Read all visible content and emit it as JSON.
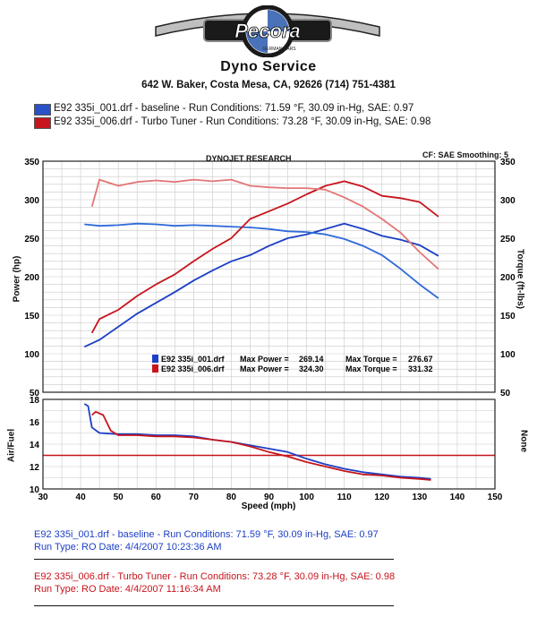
{
  "header": {
    "logo_text": "Pecora",
    "logo_subtext": "GERMAN CARS",
    "title": "Dyno Service",
    "address": "642 W. Baker, Costa Mesa, CA, 92626  (714) 751-4381"
  },
  "runs_top": [
    {
      "text": "E92 335i_001.drf - baseline  -  Run Conditions: 71.59 °F, 30.09 in-Hg, SAE: 0.97",
      "color": "#1c3fc4"
    },
    {
      "text": "E92 335i_006.drf - Turbo Tuner  -  Run Conditions: 73.28 °F, 30.09 in-Hg, SAE: 0.98",
      "color": "#c8141c"
    }
  ],
  "chart_header": {
    "center": "DYNOJET RESEARCH",
    "right": "CF: SAE  Smoothing: 5"
  },
  "chart_data": [
    {
      "type": "line",
      "xlim": [
        30,
        150
      ],
      "ylim_left": [
        50,
        350
      ],
      "ylim_right": [
        50,
        350
      ],
      "ylabel": "Power (hp)",
      "ylabel_right": "Torque (ft-lbs)",
      "yticks": [
        "50",
        "100",
        "150",
        "200",
        "250",
        "300",
        "350"
      ],
      "grid": true,
      "series": [
        {
          "name": "E92 335i_001.drf",
          "measure": "Power",
          "color": "#1c3fc4",
          "x": [
            41,
            45,
            50,
            55,
            60,
            65,
            70,
            75,
            80,
            85,
            90,
            95,
            100,
            105,
            110,
            115,
            120,
            125,
            130,
            135
          ],
          "y": [
            109,
            118,
            135,
            152,
            166,
            180,
            195,
            208,
            220,
            228,
            240,
            250,
            255,
            262,
            269,
            262,
            253,
            248,
            241,
            227
          ]
        },
        {
          "name": "E92 335i_001.drf",
          "measure": "Torque",
          "color": "#2f6ad8",
          "x": [
            41,
            45,
            50,
            55,
            60,
            65,
            70,
            75,
            80,
            85,
            90,
            95,
            100,
            105,
            110,
            115,
            120,
            125,
            130,
            135
          ],
          "y": [
            268,
            266,
            267,
            269,
            268,
            266,
            267,
            266,
            265,
            264,
            262,
            259,
            258,
            255,
            249,
            240,
            228,
            210,
            190,
            172
          ]
        },
        {
          "name": "E92 335i_006.drf",
          "measure": "Power",
          "color": "#c8141c",
          "x": [
            43,
            45,
            50,
            55,
            60,
            65,
            70,
            75,
            80,
            85,
            90,
            95,
            100,
            105,
            110,
            115,
            120,
            125,
            130,
            135
          ],
          "y": [
            127,
            145,
            157,
            175,
            190,
            203,
            220,
            236,
            250,
            275,
            285,
            295,
            307,
            318,
            324,
            317,
            305,
            302,
            297,
            278
          ]
        },
        {
          "name": "E92 335i_006.drf",
          "measure": "Torque",
          "color": "#e37676",
          "x": [
            43,
            45,
            50,
            55,
            60,
            65,
            70,
            75,
            80,
            85,
            90,
            95,
            100,
            105,
            110,
            115,
            120,
            125,
            130,
            135
          ],
          "y": [
            291,
            326,
            318,
            323,
            325,
            323,
            326,
            324,
            326,
            318,
            316,
            315,
            315,
            313,
            303,
            291,
            275,
            257,
            232,
            210
          ]
        }
      ],
      "legend": [
        {
          "name": "E92 335i_001.drf",
          "max_power_label": "Max Power =",
          "max_power": "269.14",
          "max_torque_label": "Max Torque =",
          "max_torque": "276.67",
          "color": "#1c3fc4"
        },
        {
          "name": "E92 335i_006.drf",
          "max_power_label": "Max Power =",
          "max_power": "324.30",
          "max_torque_label": "Max Torque =",
          "max_torque": "331.32",
          "color": "#c8141c"
        }
      ]
    },
    {
      "type": "line",
      "xlim": [
        30,
        150
      ],
      "ylim": [
        10,
        18
      ],
      "xlabel": "Speed (mph)",
      "ylabel": "Air/Fuel",
      "ylabel_right": "None",
      "xticks": [
        "30",
        "40",
        "50",
        "60",
        "70",
        "80",
        "90",
        "100",
        "110",
        "120",
        "130",
        "140",
        "150"
      ],
      "yticks": [
        "10",
        "12",
        "14",
        "16",
        "18"
      ],
      "reference_line": 13,
      "grid": true,
      "series": [
        {
          "name": "E92 335i_001.drf",
          "color": "#1c3fc4",
          "x": [
            41,
            42,
            43,
            45,
            50,
            55,
            60,
            65,
            70,
            75,
            80,
            85,
            90,
            95,
            100,
            105,
            110,
            115,
            120,
            125,
            130,
            133
          ],
          "y": [
            17.6,
            17.4,
            15.5,
            15,
            14.9,
            14.9,
            14.8,
            14.8,
            14.7,
            14.4,
            14.2,
            13.9,
            13.6,
            13.3,
            12.7,
            12.2,
            11.8,
            11.5,
            11.3,
            11.1,
            11.0,
            10.9
          ]
        },
        {
          "name": "E92 335i_006.drf",
          "color": "#c8141c",
          "x": [
            43,
            44,
            46,
            48,
            50,
            55,
            60,
            65,
            70,
            75,
            80,
            85,
            90,
            95,
            100,
            105,
            110,
            115,
            120,
            125,
            130,
            133
          ],
          "y": [
            16.6,
            16.9,
            16.6,
            15.2,
            14.8,
            14.8,
            14.7,
            14.7,
            14.6,
            14.4,
            14.2,
            13.8,
            13.3,
            12.9,
            12.4,
            12.0,
            11.6,
            11.3,
            11.2,
            11.0,
            10.9,
            10.8
          ]
        }
      ]
    }
  ],
  "runs_bottom": [
    {
      "line1": "E92 335i_001.drf - baseline  -  Run Conditions: 71.59 °F, 30.09 in-Hg, SAE: 0.97",
      "line2": "Run Type: RO  Date: 4/4/2007 10:23:36 AM",
      "color": "#1c3fc4"
    },
    {
      "line1": "E92 335i_006.drf - Turbo Tuner  -  Run Conditions: 73.28 °F, 30.09 in-Hg, SAE: 0.98",
      "line2": "Run Type: RO  Date: 4/4/2007 11:16:34 AM",
      "color": "#c8141c"
    }
  ]
}
